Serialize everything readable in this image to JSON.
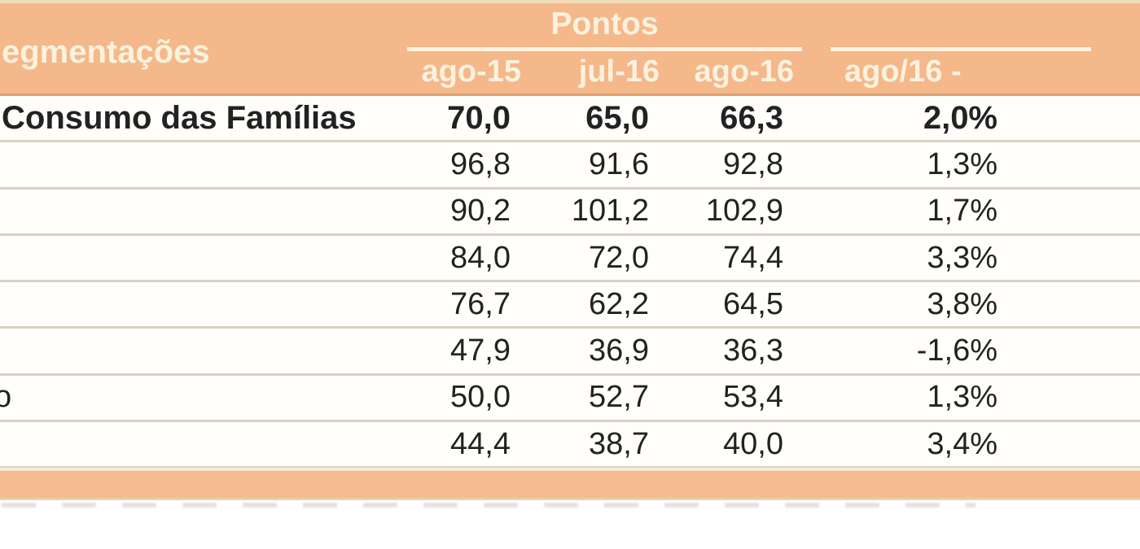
{
  "colors": {
    "header_bg": "#f5b88a",
    "header_text": "#faf2de",
    "header_bottom_border": "#dd9f70",
    "row_divider": "#d7d3c5",
    "body_text": "#222222",
    "footer_band": "#f5bb8e",
    "group_underline": "#fbf3e0"
  },
  "chart_data": {
    "type": "table",
    "header": {
      "segmentations": "egmentações",
      "points_group": "Pontos",
      "variation_group": "ago/16 -",
      "columns": [
        "ago-15",
        "jul-16",
        "ago-16"
      ]
    },
    "rows": [
      {
        "label": "Consumo das Famílias",
        "v1": "70,0",
        "v2": "65,0",
        "v3": "66,3",
        "var": "2,0%"
      },
      {
        "label": "",
        "v1": "96,8",
        "v2": "91,6",
        "v3": "92,8",
        "var": "1,3%"
      },
      {
        "label": "",
        "v1": "90,2",
        "v2": "101,2",
        "v3": "102,9",
        "var": "1,7%"
      },
      {
        "label": "",
        "v1": "84,0",
        "v2": "72,0",
        "v3": "74,4",
        "var": "3,3%"
      },
      {
        "label": "",
        "v1": "76,7",
        "v2": "62,2",
        "v3": "64,5",
        "var": "3,8%"
      },
      {
        "label": "",
        "v1": "47,9",
        "v2": "36,9",
        "v3": "36,3",
        "var": "-1,6%"
      },
      {
        "label": "o",
        "v1": "50,0",
        "v2": "52,7",
        "v3": "53,4",
        "var": "1,3%"
      },
      {
        "label": "",
        "v1": "44,4",
        "v2": "38,7",
        "v3": "40,0",
        "var": "3,4%"
      }
    ]
  }
}
